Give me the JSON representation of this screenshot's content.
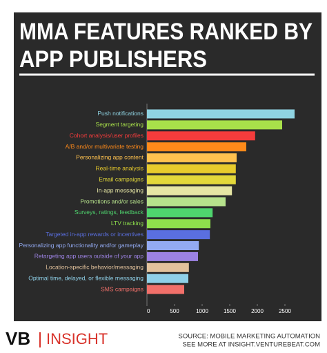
{
  "chart_data": {
    "type": "bar",
    "orientation": "horizontal",
    "title": [
      "MMA FEATURES RANKED BY",
      "APP PUBLISHERS"
    ],
    "categories": [
      "Push notifications",
      "Segment targeting",
      "Cohort analysis/user profiles",
      "A/B and/or multivariate testing",
      "Personalizing app content",
      "Real-time analysis",
      "Email campaigns",
      "In-app messaging",
      "Promotions and/or sales",
      "Surveys, ratings, feedback",
      "LTV tracking",
      "Targeted in-app rewards or incentives",
      "Personalizing app functionality and/or gameplay",
      "Retargeting app users outside of your app",
      "Location-specific behavior/messaging",
      "Optimal time, delayed, or flexible messaging",
      "SMS campaigns"
    ],
    "values": [
      2675,
      2450,
      1960,
      1800,
      1625,
      1610,
      1610,
      1540,
      1425,
      1190,
      1150,
      1140,
      940,
      925,
      760,
      750,
      675
    ],
    "colors": [
      "#8fd3e2",
      "#a8e04a",
      "#f43c3c",
      "#ff8a1a",
      "#ffc24f",
      "#e8cb2c",
      "#e3d83a",
      "#e6e6a4",
      "#b6e28c",
      "#4fd56e",
      "#8ee04c",
      "#5a6fe0",
      "#93aaf2",
      "#9c82e2",
      "#e2c29c",
      "#8fd0e8",
      "#f2706a"
    ],
    "xlim": [
      0,
      2750
    ],
    "xticks": [
      0,
      500,
      1000,
      1500,
      2000,
      2500
    ],
    "logo": "VB",
    "brand": "INSIGHT",
    "source": [
      "SOURCE: MOBILE MARKETING AUTOMATION",
      "SEE MORE AT INSIGHT.VENTUREBEAT.COM"
    ]
  }
}
